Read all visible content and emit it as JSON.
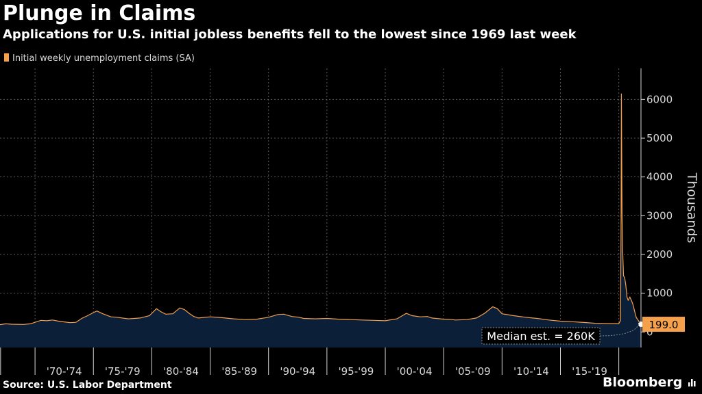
{
  "title": "Plunge in Claims",
  "subtitle": "Applications for U.S. initial jobless benefits fell to the lowest since 1969 last week",
  "source": "Source: U.S. Labor Department",
  "brand": "Bloomberg",
  "colors": {
    "series": "#f5a04a",
    "area": "#0b2038",
    "grid": "#5a5a5a",
    "background": "#000000"
  },
  "chart_data": {
    "type": "area",
    "title": "Plunge in Claims",
    "subtitle": "Applications for U.S. initial jobless benefits fell to the lowest since 1969 last week",
    "ylabel": "Thousands",
    "xlabel": "",
    "ylim": [
      -400,
      6800
    ],
    "xlim": [
      1967.0,
      2021.9
    ],
    "y_ticks": [
      0,
      1000,
      2000,
      3000,
      4000,
      5000,
      6000
    ],
    "y_tick_labels": [
      "0",
      "1000",
      "2000",
      "3000",
      "4000",
      "5000",
      "6000"
    ],
    "x_tick_labels": [
      "'70-'74",
      "'75-'79",
      "'80-'84",
      "'85-'89",
      "'90-'94",
      "'95-'99",
      "'00-'04",
      "'05-'09",
      "'10-'14",
      "'15-'19"
    ],
    "grid": true,
    "legend": {
      "position": "top-left",
      "entries": [
        "Initial weekly unemployment claims (SA)"
      ]
    },
    "series": [
      {
        "name": "Initial weekly unemployment claims (SA)",
        "x": [
          1967.0,
          1967.5,
          1968.0,
          1969.0,
          1969.6,
          1970.5,
          1971.0,
          1971.5,
          1972.0,
          1972.5,
          1973.0,
          1973.5,
          1974.0,
          1974.5,
          1975.0,
          1975.3,
          1975.8,
          1976.5,
          1977.0,
          1978.0,
          1979.0,
          1979.8,
          1980.4,
          1980.8,
          1981.2,
          1981.8,
          1982.4,
          1982.8,
          1983.2,
          1983.6,
          1984.0,
          1985.0,
          1986.0,
          1987.0,
          1988.0,
          1989.0,
          1990.0,
          1990.8,
          1991.3,
          1992.0,
          1992.6,
          1993.0,
          1994.0,
          1995.0,
          1996.0,
          1997.0,
          1998.0,
          1999.0,
          2000.0,
          2001.0,
          2001.8,
          2002.3,
          2003.0,
          2003.6,
          2004.0,
          2005.0,
          2005.7,
          2006.0,
          2007.0,
          2007.8,
          2008.5,
          2009.2,
          2009.6,
          2010.0,
          2011.0,
          2012.0,
          2013.0,
          2014.0,
          2015.0,
          2016.0,
          2017.0,
          2018.0,
          2019.0,
          2020.0,
          2020.15,
          2020.2,
          2020.22,
          2020.24,
          2020.26,
          2020.28,
          2020.32,
          2020.4,
          2020.5,
          2020.6,
          2020.7,
          2020.8,
          2020.95,
          2021.1,
          2021.2,
          2021.3,
          2021.4,
          2021.5,
          2021.6,
          2021.75,
          2021.9
        ],
        "values": [
          190,
          210,
          200,
          195,
          210,
          300,
          290,
          310,
          280,
          260,
          240,
          250,
          350,
          420,
          500,
          540,
          470,
          390,
          380,
          340,
          360,
          420,
          600,
          520,
          460,
          470,
          620,
          580,
          480,
          400,
          360,
          390,
          370,
          340,
          320,
          330,
          380,
          450,
          460,
          400,
          380,
          350,
          340,
          350,
          330,
          320,
          310,
          300,
          290,
          340,
          480,
          420,
          390,
          400,
          360,
          330,
          320,
          310,
          320,
          360,
          480,
          650,
          600,
          470,
          420,
          380,
          350,
          310,
          280,
          265,
          245,
          225,
          215,
          215,
          300,
          2950,
          6150,
          5250,
          3800,
          3000,
          2200,
          1450,
          1400,
          1200,
          900,
          820,
          900,
          800,
          720,
          600,
          480,
          370,
          330,
          260,
          199
        ]
      }
    ],
    "annotations": [
      {
        "label": "199.0",
        "x": 2021.9,
        "y": 199
      },
      {
        "label": "Median est. = 260K",
        "x": 2021.9,
        "y": 260
      }
    ]
  }
}
